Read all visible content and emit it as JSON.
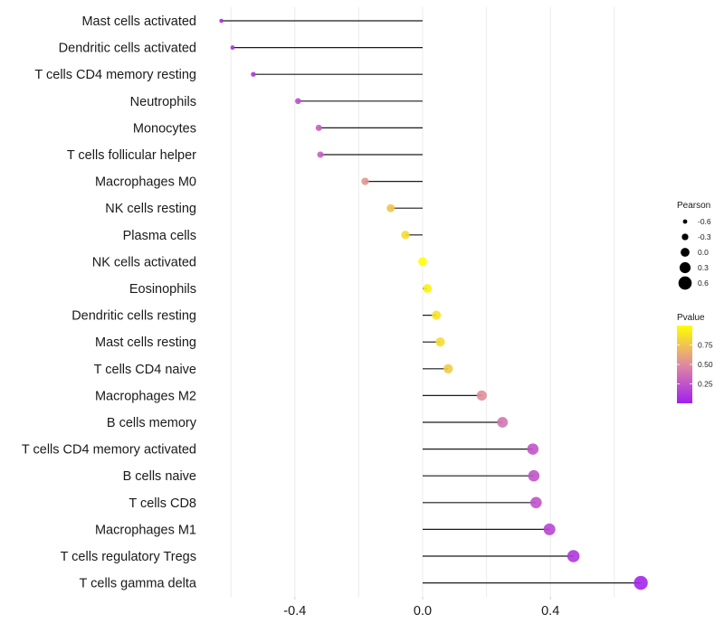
{
  "chart_data": {
    "type": "lollipop",
    "title": "",
    "xlabel": "",
    "ylabel": "",
    "xlim": [
      -0.66,
      0.73
    ],
    "x_ticks": [
      -0.4,
      0.0,
      0.4
    ],
    "x_tick_labels": [
      "-0.4",
      "0.0",
      "0.4"
    ],
    "x_minor_gridlines": [
      -0.6,
      -0.2,
      0.2,
      0.6
    ],
    "grid": true,
    "categories": [
      "Mast cells activated",
      "Dendritic cells activated",
      "T cells CD4 memory resting",
      "Neutrophils",
      "Monocytes",
      "T cells follicular helper",
      "Macrophages M0",
      "NK cells resting",
      "Plasma cells",
      "NK cells activated",
      "Eosinophils",
      "Dendritic cells resting",
      "Mast cells resting",
      "T cells CD4 naive",
      "Macrophages M2",
      "B cells memory",
      "T cells CD4 memory activated",
      "B cells naive",
      "T cells CD8",
      "Macrophages M1",
      "T cells regulatory  Tregs",
      "T cells gamma delta"
    ],
    "series": [
      {
        "name": "Pearson",
        "values": [
          -0.63,
          -0.595,
          -0.53,
          -0.39,
          -0.325,
          -0.32,
          -0.18,
          -0.1,
          -0.054,
          0.0,
          0.015,
          0.043,
          0.055,
          0.08,
          0.185,
          0.25,
          0.345,
          0.348,
          0.355,
          0.397,
          0.472,
          0.683
        ]
      },
      {
        "name": "Pvalue",
        "values": [
          0.05,
          0.1,
          0.12,
          0.22,
          0.3,
          0.3,
          0.55,
          0.75,
          0.85,
          1.0,
          0.95,
          0.88,
          0.85,
          0.78,
          0.52,
          0.4,
          0.25,
          0.25,
          0.24,
          0.18,
          0.12,
          0.03
        ]
      }
    ],
    "legend": {
      "placement": "right",
      "size_legend": {
        "title": "Pearson",
        "labels": [
          "-0.6",
          "-0.3",
          "0.0",
          "0.3",
          "0.6"
        ],
        "values": [
          -0.6,
          -0.3,
          0.0,
          0.3,
          0.6
        ]
      },
      "color_legend": {
        "title": "Pvalue",
        "labels": [
          "0.75",
          "0.50",
          "0.25"
        ],
        "values": [
          0.75,
          0.5,
          0.25
        ],
        "range": [
          0.0,
          1.0
        ],
        "color_low": "#a020f0",
        "color_mid": "#e08aa0",
        "color_high": "#ffff00"
      }
    }
  }
}
